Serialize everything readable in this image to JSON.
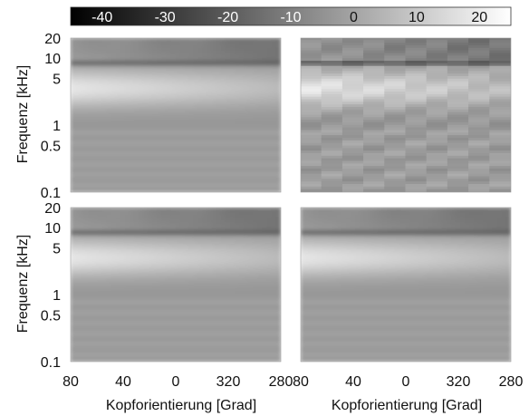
{
  "chart_data": {
    "type": "heatmap",
    "colorbar": {
      "range": [
        -45,
        25
      ],
      "ticks": [
        -40,
        -30,
        -20,
        -10,
        0,
        10,
        20
      ],
      "tick_labels": [
        "-40",
        "-30",
        "-20",
        "-10",
        "0",
        "10",
        "20"
      ],
      "colors": {
        "low": "#000000",
        "high": "#ffffff"
      }
    },
    "xlabel": "Kopforientierung [Grad]",
    "ylabel": "Frequenz [kHz]",
    "x_tick_labels": [
      "80",
      "40",
      "0",
      "320",
      "280"
    ],
    "y_ticks": [
      0.1,
      0.5,
      1,
      5,
      10,
      20
    ],
    "y_tick_labels": [
      "0.1",
      "0.5",
      "1",
      "5",
      "10",
      "20"
    ],
    "y_scale": "log",
    "ylim": [
      0.1,
      20
    ],
    "panels": [
      {
        "row": 0,
        "col": 0,
        "style": "smooth"
      },
      {
        "row": 0,
        "col": 1,
        "style": "blocky"
      },
      {
        "row": 1,
        "col": 0,
        "style": "smooth"
      },
      {
        "row": 1,
        "col": 1,
        "style": "smooth"
      }
    ]
  }
}
